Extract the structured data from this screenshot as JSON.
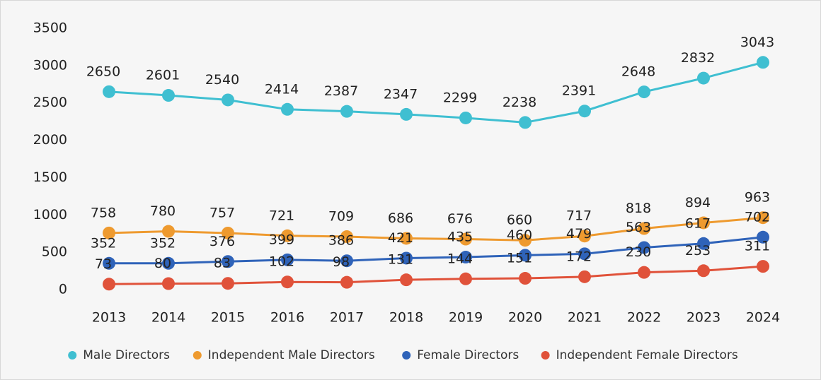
{
  "chart_data": {
    "type": "line",
    "categories": [
      "2013",
      "2014",
      "2015",
      "2016",
      "2017",
      "2018",
      "2019",
      "2020",
      "2021",
      "2022",
      "2023",
      "2024"
    ],
    "series": [
      {
        "name": "Male Directors",
        "color": "#3fbfd1",
        "values": [
          2650,
          2601,
          2540,
          2414,
          2387,
          2347,
          2299,
          2238,
          2391,
          2648,
          2832,
          3043
        ]
      },
      {
        "name": "Independent Male Directors",
        "color": "#ee9a2f",
        "values": [
          758,
          780,
          757,
          721,
          709,
          686,
          676,
          660,
          717,
          818,
          894,
          963
        ]
      },
      {
        "name": "Female Directors",
        "color": "#2f63b9",
        "values": [
          352,
          352,
          376,
          399,
          386,
          421,
          435,
          460,
          479,
          563,
          617,
          702
        ]
      },
      {
        "name": "Independent Female Directors",
        "color": "#e0523a",
        "values": [
          73,
          80,
          83,
          102,
          98,
          131,
          144,
          151,
          172,
          230,
          253,
          311
        ]
      }
    ],
    "ylim": [
      0,
      3500
    ],
    "yticks": [
      0,
      500,
      1000,
      1500,
      2000,
      2500,
      3000,
      3500
    ],
    "grid": false,
    "legend": "bottom"
  }
}
